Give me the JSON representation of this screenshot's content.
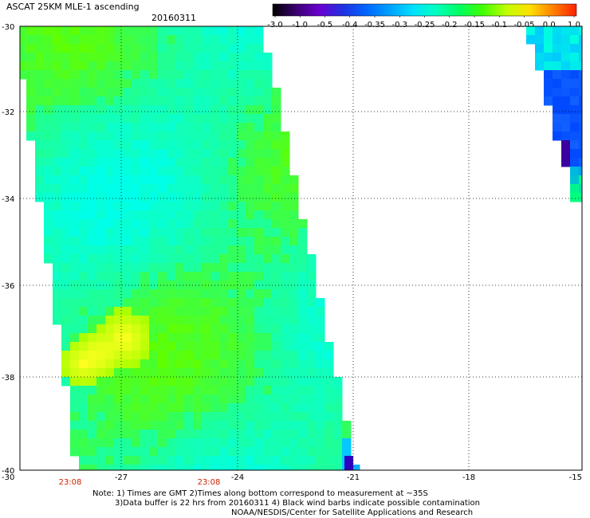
{
  "title": "ASCAT 25KM MLE-1 ascending",
  "date": "20160311",
  "colorbar": {
    "labels": [
      "-3.0",
      "-1.0",
      "-0.5",
      "-0.4",
      "-0.35",
      "-0.3",
      "-0.25",
      "-0.2",
      "-0.15",
      "-0.1",
      "-0.05",
      "0.0",
      "1.0"
    ],
    "colors": [
      "#000000",
      "#3a0070",
      "#6a00d0",
      "#2030e0",
      "#0066ff",
      "#00a0ff",
      "#00e0ff",
      "#00ffc0",
      "#00ff60",
      "#40ff00",
      "#c0ff00",
      "#ffe000",
      "#ff8000",
      "#ff2000"
    ]
  },
  "axes": {
    "y_labels": [
      "-30",
      "-32",
      "-34",
      "-36",
      "-38",
      "-40"
    ],
    "x_labels": [
      "-30",
      "-27",
      "-24",
      "-21",
      "-18",
      "-15"
    ]
  },
  "times": [
    "23:08",
    "23:08"
  ],
  "notes": [
    "Note: 1) Times are GMT 2)Times along bottom correspond to measurement at ~35S",
    "3)Data buffer is 22 hrs from 20160311 4) Black wind barbs indicate possible contamination",
    "NOAA/NESDIS/Center for Satellite Applications and Research"
  ]
}
